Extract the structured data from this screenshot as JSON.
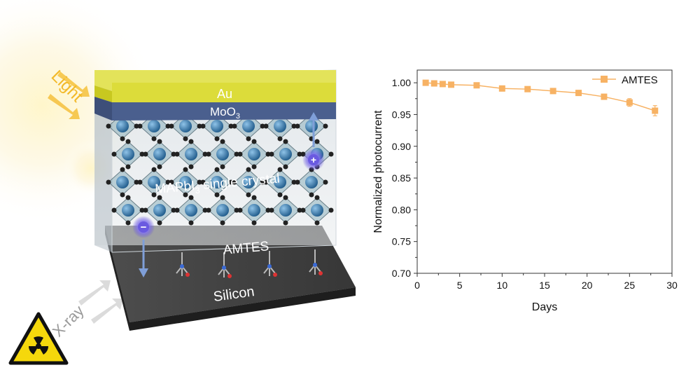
{
  "device": {
    "top_electrode": "Au",
    "hole_layer_main": "MoO",
    "hole_layer_sub": "3",
    "crystal_main": "MAPbI",
    "crystal_sub": "3",
    "crystal_suffix": " single crystal",
    "interlayer": "AMTES",
    "substrate": "Silicon",
    "light_label": "Light",
    "xray_label": "X-ray",
    "electron_symbol": "−",
    "hole_symbol": "+"
  },
  "chart_data": {
    "type": "line",
    "xlabel": "Days",
    "ylabel": "Normalized photocurrent",
    "xlim": [
      0,
      30
    ],
    "ylim": [
      0.7,
      1.02
    ],
    "x_ticks": [
      "0",
      "5",
      "10",
      "15",
      "20",
      "25",
      "30"
    ],
    "y_ticks": [
      "0.70",
      "0.75",
      "0.80",
      "0.85",
      "0.90",
      "0.95",
      "1.00"
    ],
    "legend_position": "top-right",
    "grid": false,
    "series": [
      {
        "name": "AMTES",
        "color": "#f7b264",
        "marker": "square",
        "x": [
          1,
          2,
          3,
          4,
          7,
          10,
          13,
          16,
          19,
          22,
          25,
          28
        ],
        "y": [
          1.0,
          0.999,
          0.998,
          0.997,
          0.996,
          0.991,
          0.99,
          0.987,
          0.984,
          0.978,
          0.969,
          0.956
        ],
        "error": [
          0.002,
          0.002,
          0.002,
          0.002,
          0.002,
          0.003,
          0.003,
          0.003,
          0.003,
          0.004,
          0.006,
          0.008
        ]
      }
    ]
  }
}
